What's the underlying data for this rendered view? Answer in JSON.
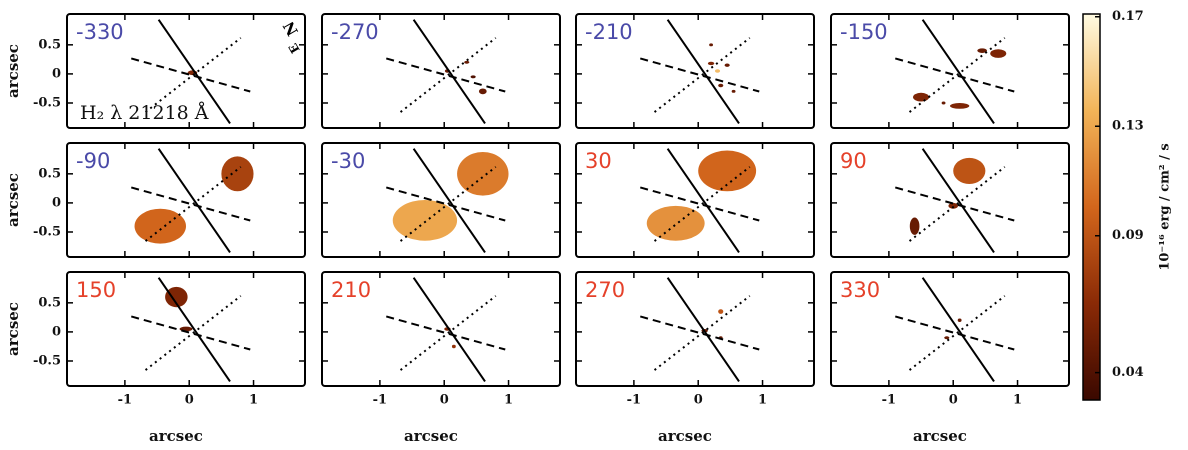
{
  "chart_data": {
    "type": "channel_maps",
    "x_label": "arcsec",
    "y_label": "arcsec",
    "line_label": "H₂ λ 21218 Å",
    "compass": [
      "N",
      "E"
    ],
    "xlim": [
      -1.9,
      1.8
    ],
    "ylim": [
      -0.93,
      1.03
    ],
    "xticks": [
      -1,
      0,
      1
    ],
    "yticks": [
      -0.5,
      0,
      0.5
    ],
    "colorbar": {
      "label": "10⁻¹⁶ erg / cm² / s",
      "clim": [
        0.03,
        0.171
      ],
      "ticks": [
        0.04,
        0.09,
        0.13,
        0.17
      ],
      "colormap": [
        "#3a0800",
        "#8a2a06",
        "#d2661c",
        "#f2b458",
        "#fffbe2"
      ]
    },
    "panels": [
      {
        "label": "-330",
        "label_color": "#4a4aa8",
        "emission": [
          {
            "x": 0.05,
            "y": 0.02,
            "w": 0.15,
            "h": 0.08,
            "flux": 0.06
          }
        ]
      },
      {
        "label": "-270",
        "label_color": "#4a4aa8",
        "emission": [
          {
            "x": 0.05,
            "y": 0.05,
            "w": 0.08,
            "h": 0.06,
            "flux": 0.05
          },
          {
            "x": 0.35,
            "y": 0.2,
            "w": 0.08,
            "h": 0.05,
            "flux": 0.05
          },
          {
            "x": 0.45,
            "y": -0.05,
            "w": 0.08,
            "h": 0.05,
            "flux": 0.04
          },
          {
            "x": 0.6,
            "y": -0.3,
            "w": 0.12,
            "h": 0.1,
            "flux": 0.05
          }
        ]
      },
      {
        "label": "-210",
        "label_color": "#4a4aa8",
        "emission": [
          {
            "x": 0.2,
            "y": 0.5,
            "w": 0.06,
            "h": 0.05,
            "flux": 0.05
          },
          {
            "x": 0.2,
            "y": 0.18,
            "w": 0.1,
            "h": 0.06,
            "flux": 0.06
          },
          {
            "x": 0.3,
            "y": 0.05,
            "w": 0.08,
            "h": 0.06,
            "flux": 0.14
          },
          {
            "x": 0.45,
            "y": 0.15,
            "w": 0.08,
            "h": 0.06,
            "flux": 0.05
          },
          {
            "x": 0.35,
            "y": -0.2,
            "w": 0.08,
            "h": 0.06,
            "flux": 0.05
          },
          {
            "x": 0.55,
            "y": -0.3,
            "w": 0.06,
            "h": 0.05,
            "flux": 0.05
          }
        ]
      },
      {
        "label": "-150",
        "label_color": "#4a4aa8",
        "emission": [
          {
            "x": 0.45,
            "y": 0.4,
            "w": 0.15,
            "h": 0.08,
            "flux": 0.05
          },
          {
            "x": 0.7,
            "y": 0.35,
            "w": 0.25,
            "h": 0.15,
            "flux": 0.06
          },
          {
            "x": -0.5,
            "y": -0.4,
            "w": 0.25,
            "h": 0.15,
            "flux": 0.06
          },
          {
            "x": 0.1,
            "y": -0.55,
            "w": 0.3,
            "h": 0.1,
            "flux": 0.06
          },
          {
            "x": -0.15,
            "y": -0.5,
            "w": 0.06,
            "h": 0.05,
            "flux": 0.05
          }
        ]
      },
      {
        "label": "-90",
        "label_color": "#4a4aa8",
        "emission": [
          {
            "x": -0.45,
            "y": -0.4,
            "w": 0.8,
            "h": 0.6,
            "flux": 0.1
          },
          {
            "x": 0.75,
            "y": 0.5,
            "w": 0.5,
            "h": 0.6,
            "flux": 0.08
          }
        ]
      },
      {
        "label": "-30",
        "label_color": "#4a4aa8",
        "emission": [
          {
            "x": -0.3,
            "y": -0.3,
            "w": 1.0,
            "h": 0.7,
            "flux": 0.13
          },
          {
            "x": 0.6,
            "y": 0.5,
            "w": 0.8,
            "h": 0.75,
            "flux": 0.11
          }
        ]
      },
      {
        "label": "30",
        "label_color": "#e5412a",
        "emission": [
          {
            "x": -0.35,
            "y": -0.35,
            "w": 0.9,
            "h": 0.6,
            "flux": 0.12
          },
          {
            "x": 0.45,
            "y": 0.55,
            "w": 0.9,
            "h": 0.7,
            "flux": 0.1
          }
        ]
      },
      {
        "label": "90",
        "label_color": "#e5412a",
        "emission": [
          {
            "x": 0.25,
            "y": 0.55,
            "w": 0.5,
            "h": 0.45,
            "flux": 0.09
          },
          {
            "x": 0,
            "y": -0.05,
            "w": 0.15,
            "h": 0.1,
            "flux": 0.06
          },
          {
            "x": -0.6,
            "y": -0.4,
            "w": 0.15,
            "h": 0.3,
            "flux": 0.05
          }
        ]
      },
      {
        "label": "150",
        "label_color": "#e5412a",
        "emission": [
          {
            "x": -0.2,
            "y": 0.6,
            "w": 0.35,
            "h": 0.35,
            "flux": 0.06
          },
          {
            "x": -0.05,
            "y": 0.05,
            "w": 0.2,
            "h": 0.08,
            "flux": 0.05
          }
        ]
      },
      {
        "label": "210",
        "label_color": "#e5412a",
        "emission": [
          {
            "x": 0.05,
            "y": 0.05,
            "w": 0.1,
            "h": 0.06,
            "flux": 0.06
          },
          {
            "x": 0.15,
            "y": -0.25,
            "w": 0.06,
            "h": 0.06,
            "flux": 0.07
          }
        ]
      },
      {
        "label": "270",
        "label_color": "#e5412a",
        "emission": [
          {
            "x": 0.35,
            "y": 0.35,
            "w": 0.08,
            "h": 0.08,
            "flux": 0.09
          },
          {
            "x": 0.1,
            "y": 0.02,
            "w": 0.1,
            "h": 0.06,
            "flux": 0.05
          },
          {
            "x": 0.35,
            "y": -0.1,
            "w": 0.06,
            "h": 0.05,
            "flux": 0.05
          }
        ]
      },
      {
        "label": "330",
        "label_color": "#e5412a",
        "emission": [
          {
            "x": 0.1,
            "y": 0.2,
            "w": 0.06,
            "h": 0.06,
            "flux": 0.05
          },
          {
            "x": -0.1,
            "y": -0.1,
            "w": 0.08,
            "h": 0.05,
            "flux": 0.05
          }
        ]
      }
    ]
  }
}
